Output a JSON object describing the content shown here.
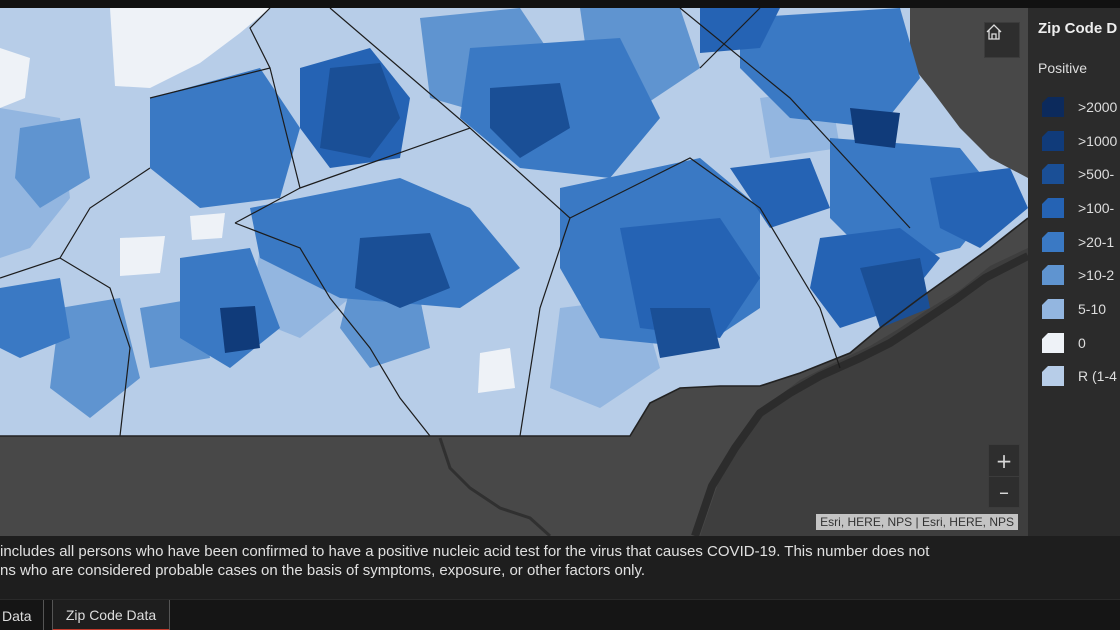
{
  "map": {
    "attribution": "Esri, HERE, NPS | Esri, HERE, NPS",
    "home_button": "home-icon",
    "zoom_in": "+",
    "zoom_out": "–"
  },
  "legend": {
    "title": "Zip Code D",
    "subtitle": "Positive",
    "items": [
      {
        "label": ">2000",
        "color": "#0c2a5c"
      },
      {
        "label": ">1000",
        "color": "#103b7a"
      },
      {
        "label": ">500-",
        "color": "#1a4f96"
      },
      {
        "label": ">100-",
        "color": "#2563b4"
      },
      {
        "label": ">20-1",
        "color": "#3a79c4"
      },
      {
        "label": ">10-2",
        "color": "#5f94d0"
      },
      {
        "label": "5-10",
        "color": "#93b6e0"
      },
      {
        "label": "0",
        "color": "#eef2f7"
      },
      {
        "label": "R (1-4",
        "color": "#b7cde8"
      }
    ]
  },
  "footnote": {
    "line1": "includes all persons who have been confirmed to have a positive nucleic acid test for the virus that causes COVID-19.  This number does not",
    "line2": "ns who are considered probable cases on the basis of symptoms, exposure, or other factors only."
  },
  "tabs": [
    "Data",
    "Zip Code Data"
  ]
}
